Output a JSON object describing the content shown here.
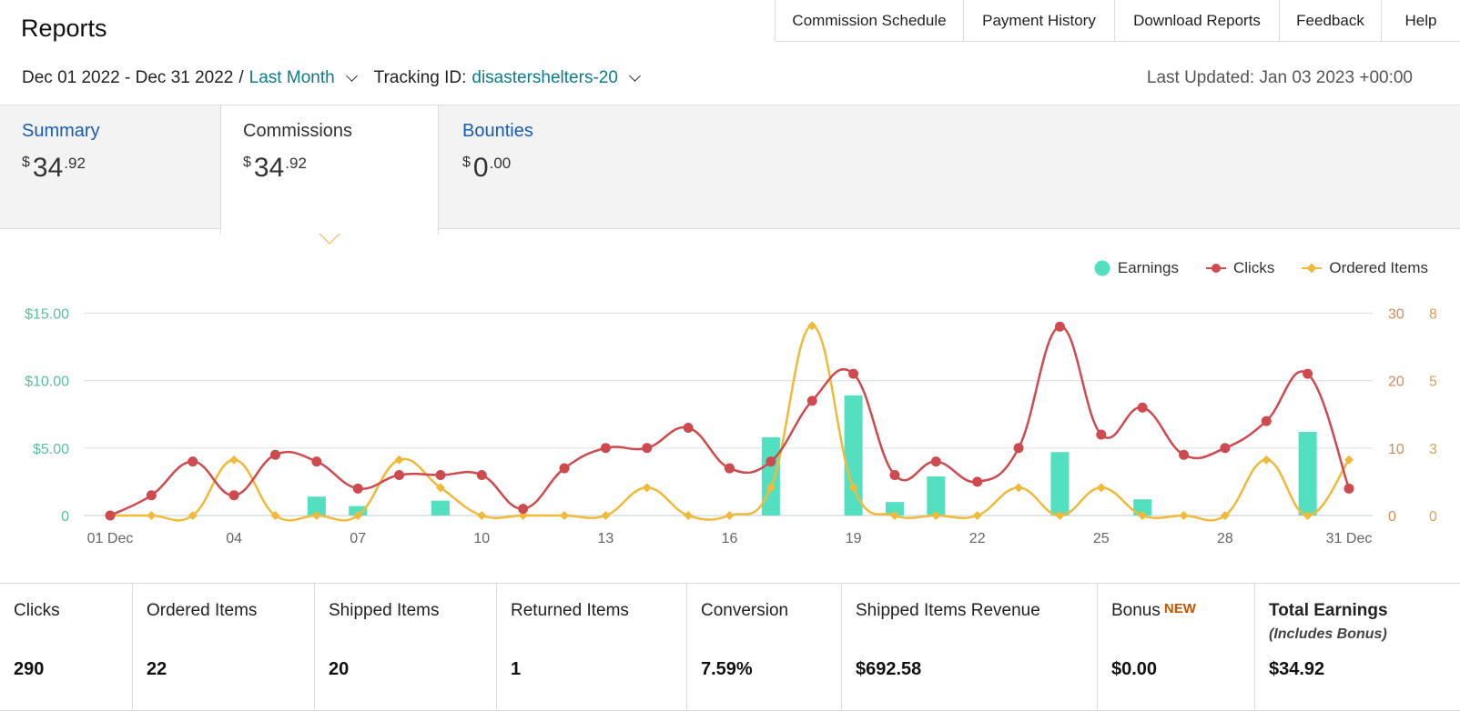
{
  "page": {
    "title": "Reports"
  },
  "topnav": [
    "Commission Schedule",
    "Payment History",
    "Download Reports",
    "Feedback",
    "Help"
  ],
  "filters": {
    "date_range": "Dec 01 2022 - Dec 31 2022",
    "period": "Last Month",
    "tracking_label": "Tracking ID:",
    "tracking_id": "disastershelters-20",
    "last_updated": "Last Updated: Jan 03 2023 +00:00"
  },
  "tabs": [
    {
      "label": "Summary",
      "currency": "$",
      "whole": "34",
      "cents": ".92",
      "active": false
    },
    {
      "label": "Commissions",
      "currency": "$",
      "whole": "34",
      "cents": ".92",
      "active": true
    },
    {
      "label": "Bounties",
      "currency": "$",
      "whole": "0",
      "cents": ".00",
      "active": false
    }
  ],
  "chart_data": {
    "type": "bar+line",
    "legend": [
      "Earnings",
      "Clicks",
      "Ordered Items"
    ],
    "colors": {
      "earnings": "#53e0c0",
      "clicks": "#cf4a4f",
      "ordered": "#f0b93a",
      "axis_left": "#5bbf9c",
      "axis_right": "#d98a58"
    },
    "x_ticks": [
      "01 Dec",
      "04",
      "07",
      "10",
      "13",
      "16",
      "19",
      "22",
      "25",
      "28",
      "31 Dec"
    ],
    "y_left_ticks": [
      "0",
      "$5.00",
      "$10.00",
      "$15.00"
    ],
    "y_left_range": [
      0,
      15
    ],
    "y_clicks_ticks": [
      "0",
      "10",
      "20",
      "30"
    ],
    "y_clicks_range": [
      0,
      30
    ],
    "y_ordered_ticks": [
      "0",
      "3",
      "5",
      "8"
    ],
    "y_ordered_range": [
      0,
      8
    ],
    "days": [
      1,
      2,
      3,
      4,
      5,
      6,
      7,
      8,
      9,
      10,
      11,
      12,
      13,
      14,
      15,
      16,
      17,
      18,
      19,
      20,
      21,
      22,
      23,
      24,
      25,
      26,
      27,
      28,
      29,
      30,
      31
    ],
    "earnings": [
      0,
      0,
      0,
      0,
      0,
      1.4,
      0.7,
      0,
      1.1,
      0,
      0,
      0,
      0,
      0,
      0,
      0,
      5.8,
      0,
      8.9,
      1.0,
      2.9,
      0,
      0,
      4.7,
      0,
      1.2,
      0,
      0,
      0,
      6.2,
      0
    ],
    "clicks": [
      0,
      3,
      8,
      3,
      9,
      8,
      4,
      6,
      6,
      6,
      1,
      7,
      10,
      10,
      13,
      7,
      8,
      17,
      21,
      6,
      8,
      5,
      10,
      28,
      12,
      16,
      9,
      10,
      14,
      21,
      4
    ],
    "ordered": [
      0,
      0,
      0,
      2.2,
      0,
      0,
      0,
      2.2,
      1.1,
      0,
      0,
      0,
      0,
      1.1,
      0,
      0,
      1.1,
      7.5,
      1.1,
      0,
      0,
      0,
      1.1,
      0,
      1.1,
      0,
      0,
      0,
      2.2,
      0,
      2.2
    ]
  },
  "stats": [
    {
      "label": "Clicks",
      "value": "290"
    },
    {
      "label": "Ordered Items",
      "value": "22"
    },
    {
      "label": "Shipped Items",
      "value": "20"
    },
    {
      "label": "Returned Items",
      "value": "1"
    },
    {
      "label": "Conversion",
      "value": "7.59%"
    },
    {
      "label": "Shipped Items Revenue",
      "value": "$692.58"
    },
    {
      "label": "Bonus",
      "badge": "NEW",
      "value": "$0.00"
    },
    {
      "label": "Total Earnings",
      "sub": "(Includes Bonus)",
      "value": "$34.92"
    }
  ]
}
